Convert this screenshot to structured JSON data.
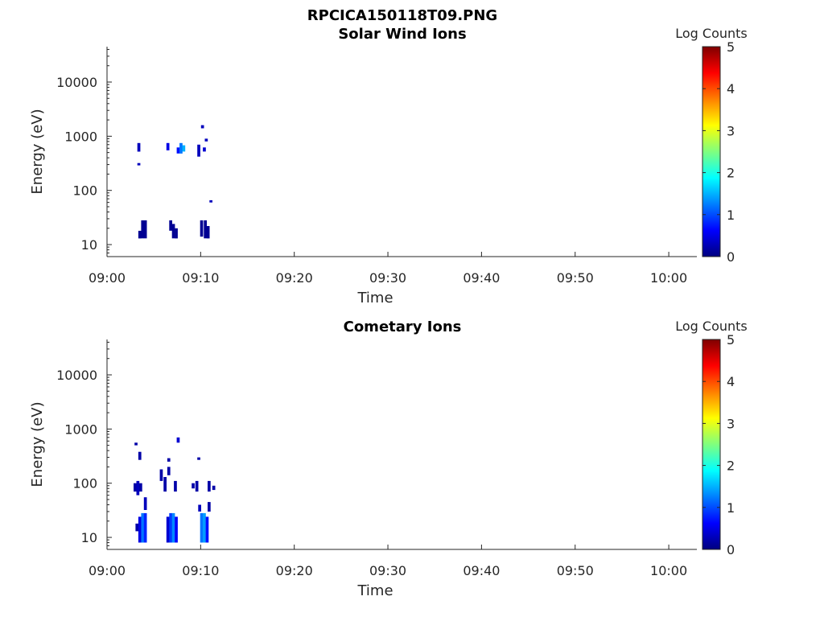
{
  "figure_title": "RPCICA150118T09.PNG",
  "colorscale": {
    "stops": [
      "#00007f",
      "#0000ff",
      "#007fff",
      "#00ffff",
      "#7fff7f",
      "#ffff00",
      "#ff7f00",
      "#ff0000",
      "#7f0000"
    ]
  },
  "chart_data": [
    {
      "type": "heatmap",
      "title": "Solar Wind Ions",
      "xlabel": "Time",
      "ylabel": "Energy (eV)",
      "y_scale": "log",
      "xlim": [
        0,
        63
      ],
      "ylim": [
        6,
        45000
      ],
      "x_ticks": [
        {
          "value": 0,
          "label": "09:00"
        },
        {
          "value": 10,
          "label": "09:10"
        },
        {
          "value": 20,
          "label": "09:20"
        },
        {
          "value": 30,
          "label": "09:30"
        },
        {
          "value": 40,
          "label": "09:40"
        },
        {
          "value": 50,
          "label": "09:50"
        },
        {
          "value": 60,
          "label": "10:00"
        }
      ],
      "y_ticks": [
        {
          "value": 10,
          "label": "10"
        },
        {
          "value": 100,
          "label": "100"
        },
        {
          "value": 1000,
          "label": "1000"
        },
        {
          "value": 10000,
          "label": "10000"
        }
      ],
      "colorbar": {
        "label": "Log Counts",
        "range": [
          0,
          5
        ],
        "ticks": [
          "0",
          "1",
          "2",
          "3",
          "4",
          "5"
        ]
      },
      "cells": [
        {
          "t": 3.5,
          "e0": 13,
          "e1": 18,
          "c": 0.1
        },
        {
          "t": 3.8,
          "e0": 13,
          "e1": 28,
          "c": 0.1
        },
        {
          "t": 4.1,
          "e0": 13,
          "e1": 28,
          "c": 0.1
        },
        {
          "t": 3.4,
          "e0": 520,
          "e1": 750,
          "c": 0.3
        },
        {
          "t": 3.4,
          "e0": 290,
          "e1": 320,
          "c": 0.3
        },
        {
          "t": 6.8,
          "e0": 18,
          "e1": 28,
          "c": 0.1
        },
        {
          "t": 7.1,
          "e0": 13,
          "e1": 24,
          "c": 0.1
        },
        {
          "t": 7.4,
          "e0": 13,
          "e1": 20,
          "c": 0.1
        },
        {
          "t": 6.5,
          "e0": 550,
          "e1": 750,
          "c": 0.5
        },
        {
          "t": 7.6,
          "e0": 480,
          "e1": 620,
          "c": 0.7
        },
        {
          "t": 7.9,
          "e0": 480,
          "e1": 750,
          "c": 1.2
        },
        {
          "t": 8.2,
          "e0": 520,
          "e1": 680,
          "c": 1.5
        },
        {
          "t": 9.8,
          "e0": 420,
          "e1": 700,
          "c": 0.3
        },
        {
          "t": 10.1,
          "e0": 14,
          "e1": 28,
          "c": 0.1
        },
        {
          "t": 10.5,
          "e0": 13,
          "e1": 28,
          "c": 0.1
        },
        {
          "t": 10.8,
          "e0": 13,
          "e1": 22,
          "c": 0.1
        },
        {
          "t": 10.2,
          "e0": 1400,
          "e1": 1600,
          "c": 0.3
        },
        {
          "t": 10.4,
          "e0": 520,
          "e1": 620,
          "c": 0.4
        },
        {
          "t": 10.6,
          "e0": 800,
          "e1": 900,
          "c": 0.3
        },
        {
          "t": 11.1,
          "e0": 60,
          "e1": 66,
          "c": 0.3
        }
      ]
    },
    {
      "type": "heatmap",
      "title": "Cometary Ions",
      "xlabel": "Time",
      "ylabel": "Energy (eV)",
      "y_scale": "log",
      "xlim": [
        0,
        63
      ],
      "ylim": [
        6,
        45000
      ],
      "x_ticks": [
        {
          "value": 0,
          "label": "09:00"
        },
        {
          "value": 10,
          "label": "09:10"
        },
        {
          "value": 20,
          "label": "09:20"
        },
        {
          "value": 30,
          "label": "09:30"
        },
        {
          "value": 40,
          "label": "09:40"
        },
        {
          "value": 50,
          "label": "09:50"
        },
        {
          "value": 60,
          "label": "10:00"
        }
      ],
      "y_ticks": [
        {
          "value": 10,
          "label": "10"
        },
        {
          "value": 100,
          "label": "100"
        },
        {
          "value": 1000,
          "label": "1000"
        },
        {
          "value": 10000,
          "label": "10000"
        }
      ],
      "colorbar": {
        "label": "Log Counts",
        "range": [
          0,
          5
        ],
        "ticks": [
          "0",
          "1",
          "2",
          "3",
          "4",
          "5"
        ]
      },
      "cells": [
        {
          "t": 3.2,
          "e0": 13,
          "e1": 18,
          "c": 0.2
        },
        {
          "t": 3.5,
          "e0": 8,
          "e1": 24,
          "c": 0.5
        },
        {
          "t": 3.8,
          "e0": 8,
          "e1": 28,
          "c": 1.2
        },
        {
          "t": 4.1,
          "e0": 8,
          "e1": 28,
          "c": 0.8
        },
        {
          "t": 4.1,
          "e0": 32,
          "e1": 55,
          "c": 0.3
        },
        {
          "t": 3.0,
          "e0": 70,
          "e1": 100,
          "c": 0.2
        },
        {
          "t": 3.3,
          "e0": 60,
          "e1": 110,
          "c": 0.3
        },
        {
          "t": 3.6,
          "e0": 70,
          "e1": 100,
          "c": 0.2
        },
        {
          "t": 3.5,
          "e0": 270,
          "e1": 380,
          "c": 0.2
        },
        {
          "t": 3.1,
          "e0": 500,
          "e1": 560,
          "c": 0.2
        },
        {
          "t": 6.5,
          "e0": 8,
          "e1": 24,
          "c": 0.4
        },
        {
          "t": 6.8,
          "e0": 8,
          "e1": 28,
          "c": 0.9
        },
        {
          "t": 7.1,
          "e0": 8,
          "e1": 28,
          "c": 1.3
        },
        {
          "t": 7.4,
          "e0": 8,
          "e1": 24,
          "c": 0.6
        },
        {
          "t": 6.2,
          "e0": 70,
          "e1": 130,
          "c": 0.2
        },
        {
          "t": 5.8,
          "e0": 110,
          "e1": 180,
          "c": 0.2
        },
        {
          "t": 6.6,
          "e0": 140,
          "e1": 200,
          "c": 0.2
        },
        {
          "t": 7.3,
          "e0": 70,
          "e1": 110,
          "c": 0.2
        },
        {
          "t": 7.6,
          "e0": 560,
          "e1": 700,
          "c": 0.4
        },
        {
          "t": 6.6,
          "e0": 250,
          "e1": 290,
          "c": 0.2
        },
        {
          "t": 9.2,
          "e0": 80,
          "e1": 100,
          "c": 0.2
        },
        {
          "t": 9.6,
          "e0": 70,
          "e1": 110,
          "c": 0.2
        },
        {
          "t": 9.9,
          "e0": 30,
          "e1": 40,
          "c": 0.3
        },
        {
          "t": 10.1,
          "e0": 8,
          "e1": 28,
          "c": 1.2
        },
        {
          "t": 10.4,
          "e0": 8,
          "e1": 28,
          "c": 1.4
        },
        {
          "t": 10.7,
          "e0": 8,
          "e1": 24,
          "c": 0.7
        },
        {
          "t": 10.9,
          "e0": 30,
          "e1": 45,
          "c": 0.2
        },
        {
          "t": 10.9,
          "e0": 70,
          "e1": 110,
          "c": 0.2
        },
        {
          "t": 11.4,
          "e0": 75,
          "e1": 90,
          "c": 0.2
        },
        {
          "t": 9.8,
          "e0": 270,
          "e1": 300,
          "c": 0.2
        }
      ]
    }
  ]
}
